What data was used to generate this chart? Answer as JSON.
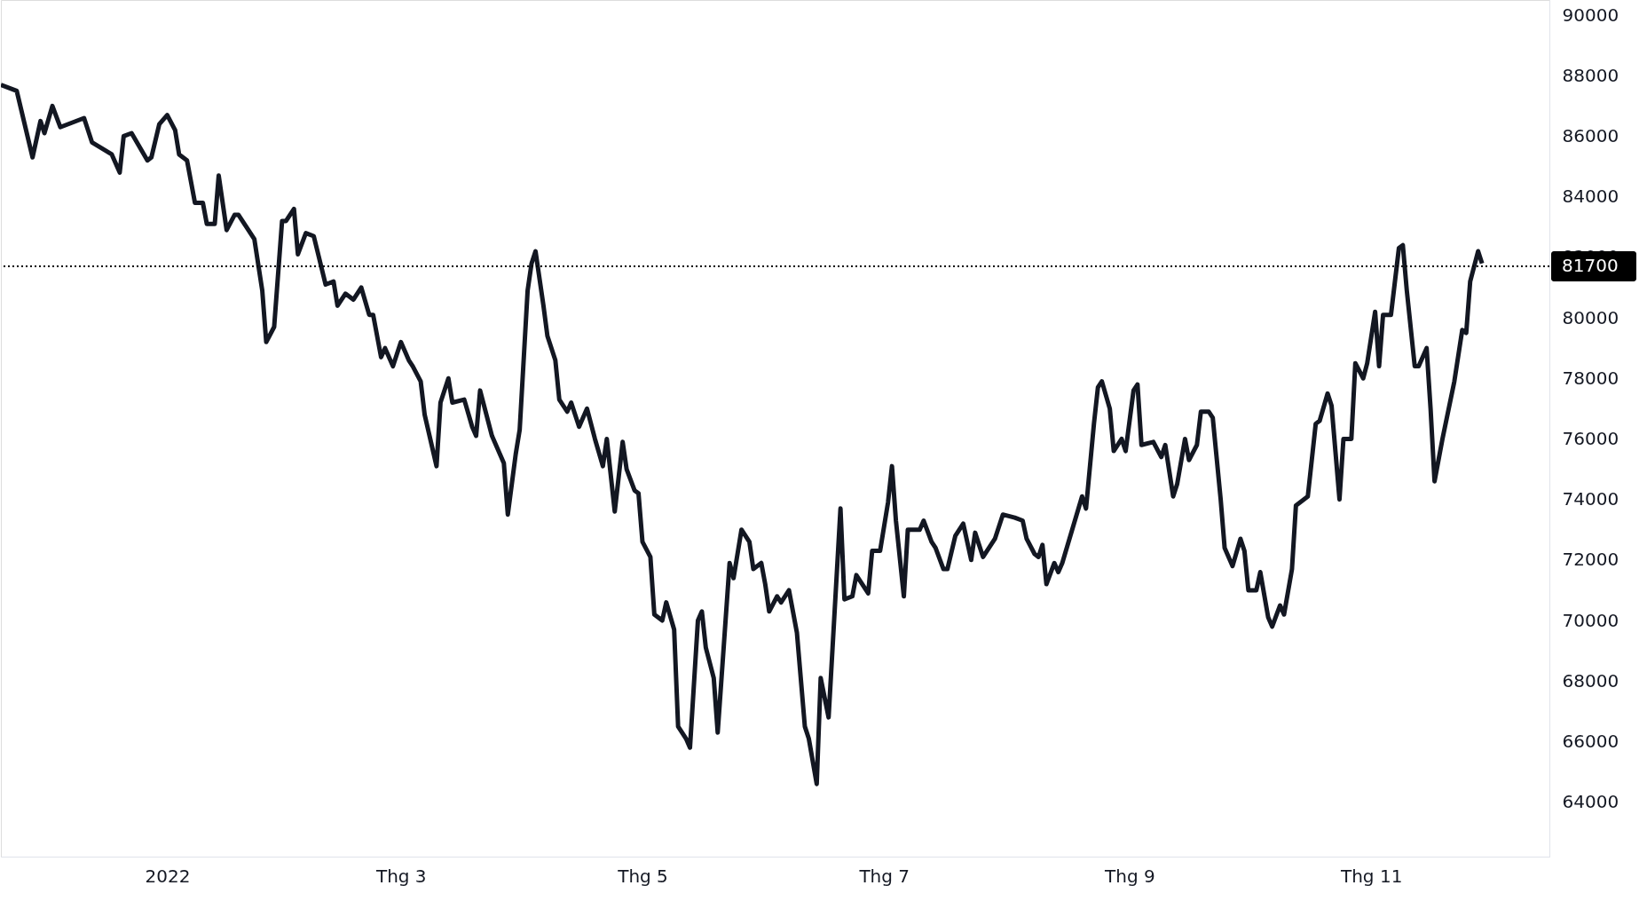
{
  "chart_data": {
    "type": "line",
    "x": [
      "2021-11-20",
      "2021-11-24",
      "2021-11-28",
      "2021-11-30",
      "2021-12-01",
      "2021-12-03",
      "2021-12-05",
      "2021-12-11",
      "2021-12-13",
      "2021-12-18",
      "2021-12-20",
      "2021-12-21",
      "2021-12-23",
      "2021-12-27",
      "2021-12-28",
      "2021-12-30",
      "2022-01-01",
      "2022-01-03",
      "2022-01-04",
      "2022-01-06",
      "2022-01-08",
      "2022-01-10",
      "2022-01-11",
      "2022-01-13",
      "2022-01-14",
      "2022-01-16",
      "2022-01-18",
      "2022-01-19",
      "2022-01-23",
      "2022-01-25",
      "2022-01-26",
      "2022-01-28",
      "2022-01-30",
      "2022-01-31",
      "2022-02-02",
      "2022-02-03",
      "2022-02-05",
      "2022-02-07",
      "2022-02-10",
      "2022-02-12",
      "2022-02-13",
      "2022-02-15",
      "2022-02-17",
      "2022-02-19",
      "2022-02-21",
      "2022-02-22",
      "2022-02-24",
      "2022-02-25",
      "2022-02-27",
      "2022-03-01",
      "2022-03-03",
      "2022-03-04",
      "2022-03-06",
      "2022-03-07",
      "2022-03-10",
      "2022-03-11",
      "2022-03-13",
      "2022-03-14",
      "2022-03-17",
      "2022-03-19",
      "2022-03-20",
      "2022-03-21",
      "2022-03-24",
      "2022-03-27",
      "2022-03-28",
      "2022-03-30",
      "2022-03-31",
      "2022-04-02",
      "2022-04-03",
      "2022-04-04",
      "2022-04-06",
      "2022-04-07",
      "2022-04-09",
      "2022-04-10",
      "2022-04-12",
      "2022-04-13",
      "2022-04-15",
      "2022-04-17",
      "2022-04-19",
      "2022-04-21",
      "2022-04-22",
      "2022-04-24",
      "2022-04-26",
      "2022-04-27",
      "2022-04-29",
      "2022-04-30",
      "2022-05-01",
      "2022-05-03",
      "2022-05-04",
      "2022-05-06",
      "2022-05-07",
      "2022-05-09",
      "2022-05-10",
      "2022-05-12",
      "2022-05-13",
      "2022-05-15",
      "2022-05-16",
      "2022-05-17",
      "2022-05-19",
      "2022-05-20",
      "2022-05-23",
      "2022-05-24",
      "2022-05-26",
      "2022-05-28",
      "2022-05-29",
      "2022-05-31",
      "2022-06-01",
      "2022-06-02",
      "2022-06-04",
      "2022-06-05",
      "2022-06-07",
      "2022-06-09",
      "2022-06-11",
      "2022-06-12",
      "2022-06-14",
      "2022-06-15",
      "2022-06-17",
      "2022-06-18",
      "2022-06-20",
      "2022-06-21",
      "2022-06-23",
      "2022-06-24",
      "2022-06-27",
      "2022-06-28",
      "2022-06-30",
      "2022-07-02",
      "2022-07-03",
      "2022-07-04",
      "2022-07-06",
      "2022-07-07",
      "2022-07-10",
      "2022-07-11",
      "2022-07-13",
      "2022-07-14",
      "2022-07-16",
      "2022-07-17",
      "2022-07-19",
      "2022-07-21",
      "2022-07-23",
      "2022-07-24",
      "2022-07-26",
      "2022-07-29",
      "2022-07-31",
      "2022-08-03",
      "2022-08-05",
      "2022-08-06",
      "2022-08-08",
      "2022-08-09",
      "2022-08-10",
      "2022-08-11",
      "2022-08-13",
      "2022-08-14",
      "2022-08-15",
      "2022-08-20",
      "2022-08-21",
      "2022-08-23",
      "2022-08-24",
      "2022-08-25",
      "2022-08-27",
      "2022-08-28",
      "2022-08-30",
      "2022-08-31",
      "2022-09-02",
      "2022-09-03",
      "2022-09-04",
      "2022-09-07",
      "2022-09-09",
      "2022-09-10",
      "2022-09-12",
      "2022-09-13",
      "2022-09-15",
      "2022-09-16",
      "2022-09-18",
      "2022-09-19",
      "2022-09-21",
      "2022-09-22",
      "2022-09-24",
      "2022-09-25",
      "2022-09-27",
      "2022-09-29",
      "2022-09-30",
      "2022-10-01",
      "2022-10-03",
      "2022-10-04",
      "2022-10-06",
      "2022-10-07",
      "2022-10-09",
      "2022-10-10",
      "2022-10-12",
      "2022-10-13",
      "2022-10-16",
      "2022-10-18",
      "2022-10-19",
      "2022-10-21",
      "2022-10-22",
      "2022-10-24",
      "2022-10-25",
      "2022-10-27",
      "2022-10-28",
      "2022-10-30",
      "2022-10-31",
      "2022-11-02",
      "2022-11-03",
      "2022-11-04",
      "2022-11-06",
      "2022-11-08",
      "2022-11-09",
      "2022-11-10",
      "2022-11-12",
      "2022-11-13",
      "2022-11-15",
      "2022-11-16",
      "2022-11-17",
      "2022-11-19",
      "2022-11-22",
      "2022-11-24",
      "2022-11-25",
      "2022-11-26",
      "2022-11-28",
      "2022-11-29"
    ],
    "series": [
      {
        "color": "#131722",
        "values": [
          87700,
          87500,
          85300,
          86500,
          86100,
          87000,
          86300,
          86600,
          85800,
          85400,
          84800,
          86000,
          86100,
          85200,
          85300,
          86400,
          86700,
          86200,
          85400,
          85200,
          83800,
          83800,
          83100,
          83100,
          84700,
          82900,
          83400,
          83400,
          82600,
          80900,
          79200,
          79700,
          83200,
          83200,
          83600,
          82100,
          82800,
          82700,
          81100,
          81200,
          80400,
          80800,
          80600,
          81000,
          80100,
          80100,
          78700,
          79000,
          78400,
          79200,
          78600,
          78400,
          77900,
          76800,
          75100,
          77200,
          78000,
          77200,
          77300,
          76400,
          76100,
          77600,
          76100,
          75200,
          73500,
          75500,
          76300,
          80900,
          81800,
          82200,
          80400,
          79400,
          78600,
          77300,
          76900,
          77200,
          76400,
          77000,
          76000,
          75100,
          76000,
          73600,
          75900,
          75000,
          74300,
          74200,
          72600,
          72100,
          70200,
          70000,
          70600,
          69700,
          66500,
          66100,
          65800,
          70000,
          70300,
          69100,
          68100,
          66300,
          71900,
          71400,
          73000,
          72600,
          71700,
          71900,
          71200,
          70300,
          70800,
          70600,
          71000,
          69600,
          66500,
          66100,
          64600,
          68100,
          66800,
          69100,
          73700,
          70700,
          70800,
          71500,
          70900,
          72300,
          72300,
          73900,
          75100,
          73300,
          70800,
          73000,
          73000,
          73300,
          72600,
          72400,
          71700,
          71700,
          72800,
          73200,
          72000,
          72900,
          72100,
          72700,
          73500,
          73400,
          73300,
          72700,
          72200,
          72100,
          72500,
          71200,
          71900,
          71600,
          71900,
          74100,
          73700,
          76500,
          77700,
          77900,
          77000,
          75600,
          76000,
          75600,
          77600,
          77800,
          75800,
          75900,
          75400,
          75800,
          74100,
          74500,
          76000,
          75300,
          75800,
          76900,
          76900,
          76700,
          74000,
          72400,
          71800,
          72700,
          72300,
          71000,
          71000,
          71600,
          70100,
          69800,
          70500,
          70200,
          71700,
          73800,
          74100,
          76500,
          76600,
          77500,
          77100,
          74000,
          76000,
          76000,
          78500,
          78000,
          78500,
          80200,
          78400,
          80100,
          80100,
          82300,
          82400,
          80900,
          78400,
          78400,
          79000,
          77000,
          74600,
          76000,
          77900,
          79600,
          79500,
          81200,
          82200,
          81800
        ]
      }
    ],
    "xlim": [
      "2021-11-20",
      "2022-12-16"
    ],
    "xticks": [
      {
        "value": "2022-01-01",
        "label": "2022"
      },
      {
        "value": "2022-03-01",
        "label": "Thg 3"
      },
      {
        "value": "2022-05-01",
        "label": "Thg 5"
      },
      {
        "value": "2022-07-01",
        "label": "Thg 7"
      },
      {
        "value": "2022-09-01",
        "label": "Thg 9"
      },
      {
        "value": "2022-11-01",
        "label": "Thg 11"
      }
    ],
    "ylim": [
      62200,
      90500
    ],
    "yticks": [
      64000,
      66000,
      68000,
      70000,
      72000,
      74000,
      76000,
      78000,
      80000,
      82000,
      84000,
      86000,
      88000,
      90000
    ],
    "ref_lines": [
      {
        "axis": "y",
        "value": 81700,
        "label": "81700",
        "color": "#000000",
        "line_style": "dotted"
      }
    ],
    "grid": false,
    "marker": "none",
    "line_style": "solid"
  }
}
